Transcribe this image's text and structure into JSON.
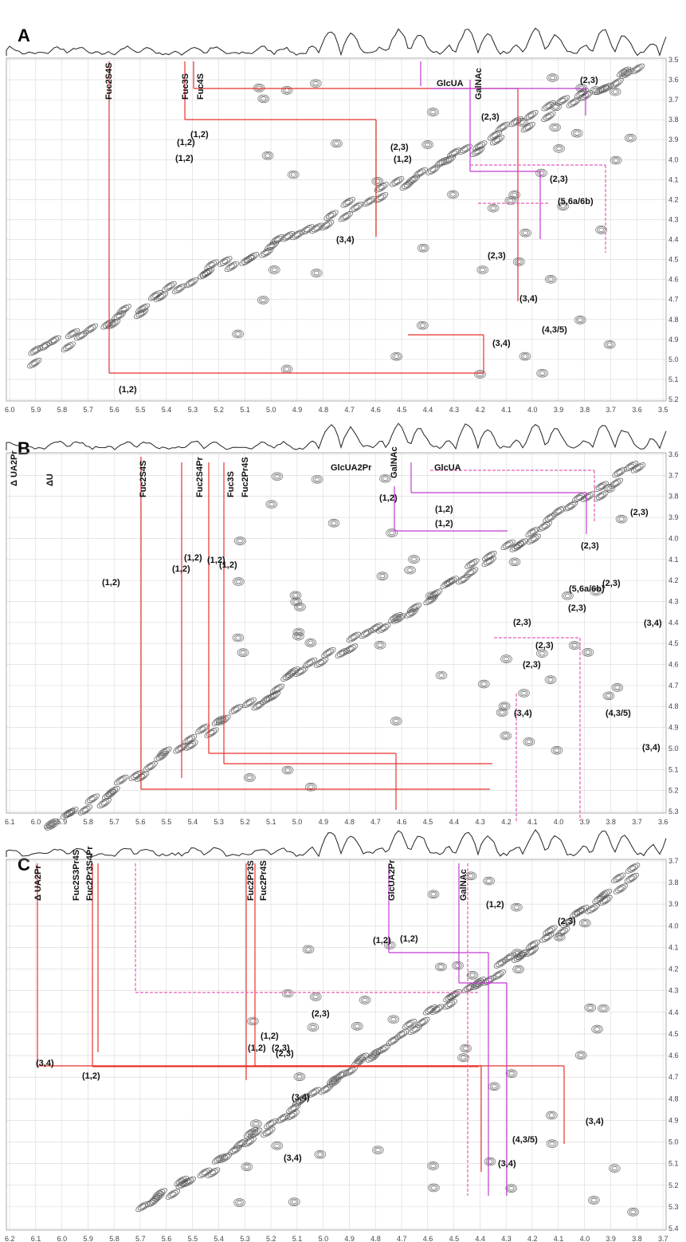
{
  "panels": [
    {
      "id": "A",
      "x_ticks": [
        "6.0",
        "5.9",
        "5.8",
        "5.7",
        "5.6",
        "5.5",
        "5.4",
        "5.3",
        "5.2",
        "5.1",
        "5.0",
        "4.9",
        "4.8",
        "4.7",
        "4.6",
        "4.5",
        "4.4",
        "4.3",
        "4.2",
        "4.1",
        "4.0",
        "3.9",
        "3.8",
        "3.7",
        "3.6",
        "3.5"
      ],
      "y_ticks": [
        "3.5",
        "3.6",
        "3.7",
        "3.8",
        "3.9",
        "4.0",
        "4.1",
        "4.2",
        "4.3",
        "4.4",
        "4.5",
        "4.6",
        "4.7",
        "4.8",
        "4.9",
        "5.0",
        "5.1",
        "5.2"
      ],
      "residue_labels": [
        "Fuc2S4S",
        "Fuc3S",
        "Fuc4S",
        "GalNAc",
        "GlcUA"
      ],
      "cross_peak_labels": [
        "(1,2)",
        "(1,2)",
        "(1,2)",
        "(1,2)",
        "(1,2)",
        "(2,3)",
        "(2,3)",
        "(2,3)",
        "(2,3)",
        "(2,3)",
        "(3,4)",
        "(3,4)",
        "(3,4)",
        "(5,6a/6b)",
        "(4,3/5)"
      ]
    },
    {
      "id": "B",
      "x_ticks": [
        "6.1",
        "6.0",
        "5.9",
        "5.8",
        "5.7",
        "5.6",
        "5.5",
        "5.4",
        "5.3",
        "5.2",
        "5.1",
        "5.0",
        "4.9",
        "4.8",
        "4.7",
        "4.6",
        "4.5",
        "4.4",
        "4.3",
        "4.2",
        "4.1",
        "4.0",
        "3.9",
        "3.8",
        "3.7",
        "3.6"
      ],
      "y_ticks": [
        "3.6",
        "3.7",
        "3.8",
        "3.9",
        "4.0",
        "4.1",
        "4.2",
        "4.3",
        "4.4",
        "4.5",
        "4.6",
        "4.7",
        "4.8",
        "4.9",
        "5.0",
        "5.1",
        "5.2",
        "5.3"
      ],
      "residue_labels": [
        "Δ UA2Pr",
        "ΔU",
        "Fuc2S4S",
        "Fuc2S4Pr",
        "Fuc3S",
        "Fuc2Pr4S",
        "GlcUA2Pr",
        "GalNAc",
        "GlcUA"
      ],
      "cross_peak_labels": [
        "(1,2)",
        "(1,2)",
        "(1,2)",
        "(1,2)",
        "(1,2)",
        "(1,2)",
        "(1,2)",
        "(1,2)",
        "(2,3)",
        "(2,3)",
        "(2,3)",
        "(2,3)",
        "(2,3)",
        "(2,3)",
        "(2,3)",
        "(3,4)",
        "(3,4)",
        "(3,4)",
        "(5,6a/6b)",
        "(4,3/5)"
      ]
    },
    {
      "id": "C",
      "x_ticks": [
        "6.2",
        "6.1",
        "6.0",
        "5.9",
        "5.8",
        "5.7",
        "5.6",
        "5.5",
        "5.4",
        "5.3",
        "5.2",
        "5.1",
        "5.0",
        "4.9",
        "4.8",
        "4.7",
        "4.6",
        "4.5",
        "4.4",
        "4.3",
        "4.2",
        "4.1",
        "4.0",
        "3.9",
        "3.8",
        "3.7"
      ],
      "y_ticks": [
        "3.7",
        "3.8",
        "3.9",
        "4.0",
        "4.1",
        "4.2",
        "4.3",
        "4.4",
        "4.5",
        "4.6",
        "4.7",
        "4.8",
        "4.9",
        "5.0",
        "5.1",
        "5.2",
        "5.3",
        "5.4"
      ],
      "residue_labels": [
        "Δ UA2Pr",
        "Fuc2S3Pr4S",
        "Fuc2Pr3S4Pr",
        "Fuc2Pr3S",
        "Fuc2Pr4S",
        "GlcUA2Pr",
        "GalNAc"
      ],
      "cross_peak_labels": [
        "(3,4)",
        "(1,2)",
        "(1,2)",
        "(1,2)",
        "(1,2)",
        "(1,2)",
        "(1,2)",
        "(2,3)",
        "(2,3)",
        "(2,3)",
        "(2,3)",
        "(3,4)",
        "(3,4)",
        "(3,4)",
        "(3,4)",
        "(4,3/5)"
      ]
    }
  ],
  "colors": {
    "red": "#e8322b",
    "magenta": "#c23bd4",
    "pink": "#e65cb8",
    "contour": "#555555",
    "grid": "#d8d8d8"
  }
}
